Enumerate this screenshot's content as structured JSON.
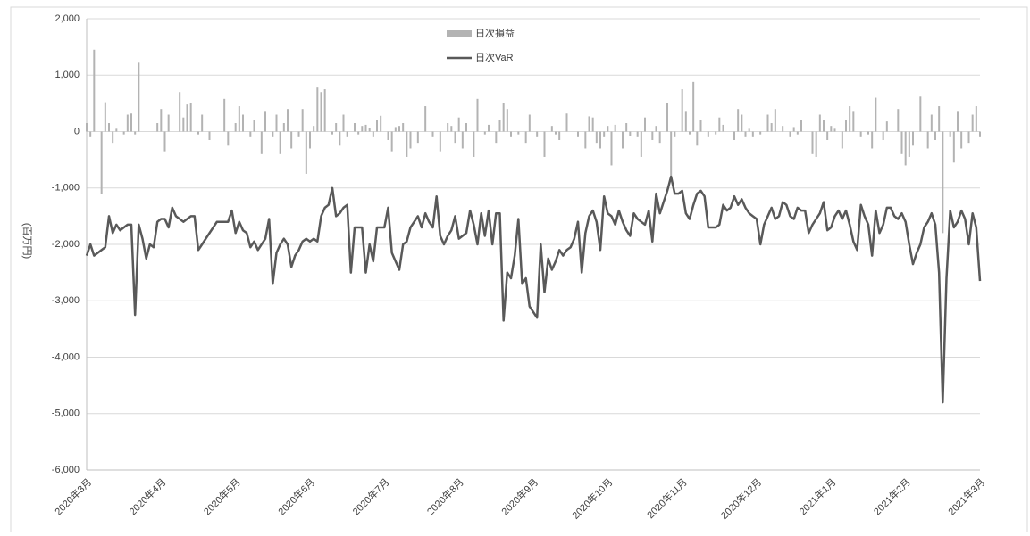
{
  "chart_data": {
    "type": "bar-line",
    "y_label": "(百万円)",
    "ylim": [
      -6000,
      2000
    ],
    "yticks": [
      {
        "value": 2000,
        "label": "2,000"
      },
      {
        "value": 1000,
        "label": "1,000"
      },
      0,
      {
        "value": -1000,
        "label": "-1,000"
      },
      {
        "value": -2000,
        "label": "-2,000"
      },
      {
        "value": -3000,
        "label": "-3,000"
      },
      {
        "value": -4000,
        "label": "-4,000"
      },
      {
        "value": -5000,
        "label": "-5,000"
      },
      {
        "value": -6000,
        "label": "-6,000"
      }
    ],
    "grid": true,
    "categories": [
      "2020年3月",
      null,
      null,
      null,
      null,
      null,
      null,
      null,
      null,
      null,
      null,
      null,
      null,
      null,
      null,
      null,
      null,
      null,
      null,
      null,
      "2020年4月",
      null,
      null,
      null,
      null,
      null,
      null,
      null,
      null,
      null,
      null,
      null,
      null,
      null,
      null,
      null,
      null,
      null,
      null,
      null,
      "2020年5月",
      null,
      null,
      null,
      null,
      null,
      null,
      null,
      null,
      null,
      null,
      null,
      null,
      null,
      null,
      null,
      null,
      null,
      null,
      null,
      "2020年6月",
      null,
      null,
      null,
      null,
      null,
      null,
      null,
      null,
      null,
      null,
      null,
      null,
      null,
      null,
      null,
      null,
      null,
      null,
      null,
      "2020年7月",
      null,
      null,
      null,
      null,
      null,
      null,
      null,
      null,
      null,
      null,
      null,
      null,
      null,
      null,
      null,
      null,
      null,
      null,
      null,
      "2020年8月",
      null,
      null,
      null,
      null,
      null,
      null,
      null,
      null,
      null,
      null,
      null,
      null,
      null,
      null,
      null,
      null,
      null,
      null,
      null,
      "2020年9月",
      null,
      null,
      null,
      null,
      null,
      null,
      null,
      null,
      null,
      null,
      null,
      null,
      null,
      null,
      null,
      null,
      null,
      null,
      null,
      "2020年10月",
      null,
      null,
      null,
      null,
      null,
      null,
      null,
      null,
      null,
      null,
      null,
      null,
      null,
      null,
      null,
      null,
      null,
      null,
      null,
      "2020年11月",
      null,
      null,
      null,
      null,
      null,
      null,
      null,
      null,
      null,
      null,
      null,
      null,
      null,
      null,
      null,
      null,
      null,
      null,
      null,
      "2020年12月",
      null,
      null,
      null,
      null,
      null,
      null,
      null,
      null,
      null,
      null,
      null,
      null,
      null,
      null,
      null,
      null,
      null,
      null,
      null,
      "2021年1月",
      null,
      null,
      null,
      null,
      null,
      null,
      null,
      null,
      null,
      null,
      null,
      null,
      null,
      null,
      null,
      null,
      null,
      null,
      null,
      "2021年2月",
      null,
      null,
      null,
      null,
      null,
      null,
      null,
      null,
      null,
      null,
      null,
      null,
      null,
      null,
      null,
      null,
      null,
      null,
      null,
      "2021年3月"
    ],
    "series": [
      {
        "name": "日次損益",
        "kind": "bar",
        "color": "#b3b3b3",
        "values": [
          150,
          -100,
          1450,
          0,
          -1100,
          520,
          150,
          -200,
          50,
          0,
          -50,
          300,
          320,
          -50,
          1220,
          0,
          0,
          0,
          0,
          150,
          400,
          -350,
          300,
          0,
          0,
          700,
          250,
          480,
          500,
          0,
          -50,
          300,
          0,
          -150,
          0,
          0,
          0,
          580,
          -250,
          0,
          150,
          450,
          300,
          0,
          -100,
          200,
          0,
          -400,
          350,
          0,
          -100,
          300,
          -400,
          150,
          400,
          -300,
          0,
          -100,
          400,
          -750,
          -300,
          100,
          780,
          700,
          750,
          0,
          -50,
          150,
          -250,
          300,
          -100,
          0,
          150,
          -50,
          100,
          120,
          60,
          -100,
          200,
          280,
          0,
          -150,
          -350,
          80,
          100,
          150,
          -450,
          -300,
          0,
          -200,
          0,
          450,
          0,
          -100,
          0,
          -350,
          0,
          150,
          100,
          -200,
          250,
          -300,
          150,
          0,
          -450,
          580,
          0,
          -50,
          120,
          0,
          -200,
          200,
          500,
          400,
          -100,
          0,
          -50,
          0,
          -200,
          300,
          0,
          -100,
          0,
          -450,
          0,
          100,
          -50,
          -150,
          0,
          320,
          0,
          0,
          -100,
          0,
          -300,
          270,
          250,
          -200,
          -300,
          -100,
          100,
          -600,
          120,
          0,
          -300,
          150,
          -80,
          0,
          -100,
          -450,
          250,
          0,
          -150,
          100,
          -200,
          0,
          500,
          -850,
          -100,
          0,
          750,
          350,
          -50,
          880,
          -250,
          200,
          0,
          -100,
          0,
          -50,
          250,
          120,
          0,
          0,
          -150,
          400,
          300,
          -100,
          50,
          -100,
          0,
          -50,
          0,
          300,
          150,
          400,
          0,
          100,
          0,
          -100,
          80,
          -50,
          200,
          0,
          0,
          -400,
          -450,
          300,
          200,
          -150,
          100,
          50,
          0,
          -300,
          200,
          450,
          350,
          0,
          -100,
          0,
          -50,
          -300,
          600,
          0,
          -150,
          180,
          0,
          0,
          400,
          -400,
          -600,
          -450,
          -250,
          0,
          620,
          0,
          -300,
          300,
          -150,
          450,
          -1800,
          0,
          -100,
          -550,
          350,
          -300,
          0,
          -200,
          300,
          450,
          -100
        ]
      },
      {
        "name": "日次VaR",
        "kind": "line",
        "color": "#595959",
        "values": [
          -2200,
          -2000,
          -2200,
          -2150,
          -2100,
          -2050,
          -1500,
          -1800,
          -1650,
          -1750,
          -1700,
          -1650,
          -1650,
          -3250,
          -1650,
          -1900,
          -2250,
          -2000,
          -2050,
          -1600,
          -1550,
          -1550,
          -1700,
          -1350,
          -1500,
          -1550,
          -1600,
          -1550,
          -1500,
          -1500,
          -2100,
          -2000,
          -1900,
          -1800,
          -1700,
          -1600,
          -1600,
          -1600,
          -1600,
          -1400,
          -1800,
          -1600,
          -1750,
          -1800,
          -2050,
          -1950,
          -2100,
          -2000,
          -1900,
          -1550,
          -2700,
          -2150,
          -2000,
          -1900,
          -2000,
          -2400,
          -2200,
          -2100,
          -1950,
          -1900,
          -1950,
          -1900,
          -1950,
          -1500,
          -1350,
          -1300,
          -1000,
          -1500,
          -1450,
          -1350,
          -1300,
          -2500,
          -1700,
          -1700,
          -1700,
          -2500,
          -2000,
          -2300,
          -1700,
          -1700,
          -1700,
          -1350,
          -2150,
          -2300,
          -2450,
          -2000,
          -1950,
          -1700,
          -1600,
          -1500,
          -1700,
          -1450,
          -1600,
          -1700,
          -1150,
          -1850,
          -2000,
          -1850,
          -1750,
          -1500,
          -1900,
          -1850,
          -1800,
          -1400,
          -1650,
          -2000,
          -1450,
          -1850,
          -1400,
          -2000,
          -1450,
          -1450,
          -3350,
          -2500,
          -2600,
          -2200,
          -1550,
          -2700,
          -2600,
          -3100,
          -3200,
          -3300,
          -2000,
          -2850,
          -2250,
          -2450,
          -2300,
          -2100,
          -2200,
          -2100,
          -2050,
          -1900,
          -1600,
          -2500,
          -1800,
          -1500,
          -1400,
          -1600,
          -2100,
          -1150,
          -1450,
          -1500,
          -1650,
          -1400,
          -1600,
          -1750,
          -1850,
          -1450,
          -1550,
          -1600,
          -1650,
          -1400,
          -1950,
          -1100,
          -1450,
          -1250,
          -1050,
          -800,
          -1100,
          -1100,
          -1050,
          -1450,
          -1550,
          -1300,
          -1100,
          -1050,
          -1150,
          -1700,
          -1700,
          -1700,
          -1650,
          -1300,
          -1400,
          -1350,
          -1150,
          -1300,
          -1200,
          -1350,
          -1450,
          -1500,
          -1550,
          -2000,
          -1650,
          -1500,
          -1350,
          -1550,
          -1500,
          -1250,
          -1300,
          -1500,
          -1550,
          -1350,
          -1400,
          -1400,
          -1800,
          -1650,
          -1550,
          -1450,
          -1250,
          -1750,
          -1700,
          -1500,
          -1400,
          -1550,
          -1400,
          -1650,
          -1950,
          -2100,
          -1300,
          -1500,
          -1650,
          -2200,
          -1400,
          -1800,
          -1650,
          -1350,
          -1350,
          -1500,
          -1550,
          -1450,
          -1600,
          -2000,
          -2350,
          -2150,
          -2000,
          -1700,
          -1600,
          -1450,
          -1650,
          -2500,
          -4800,
          -2600,
          -1400,
          -1700,
          -1600,
          -1400,
          -1550,
          -2000,
          -1450,
          -1700,
          -2650
        ]
      }
    ]
  }
}
